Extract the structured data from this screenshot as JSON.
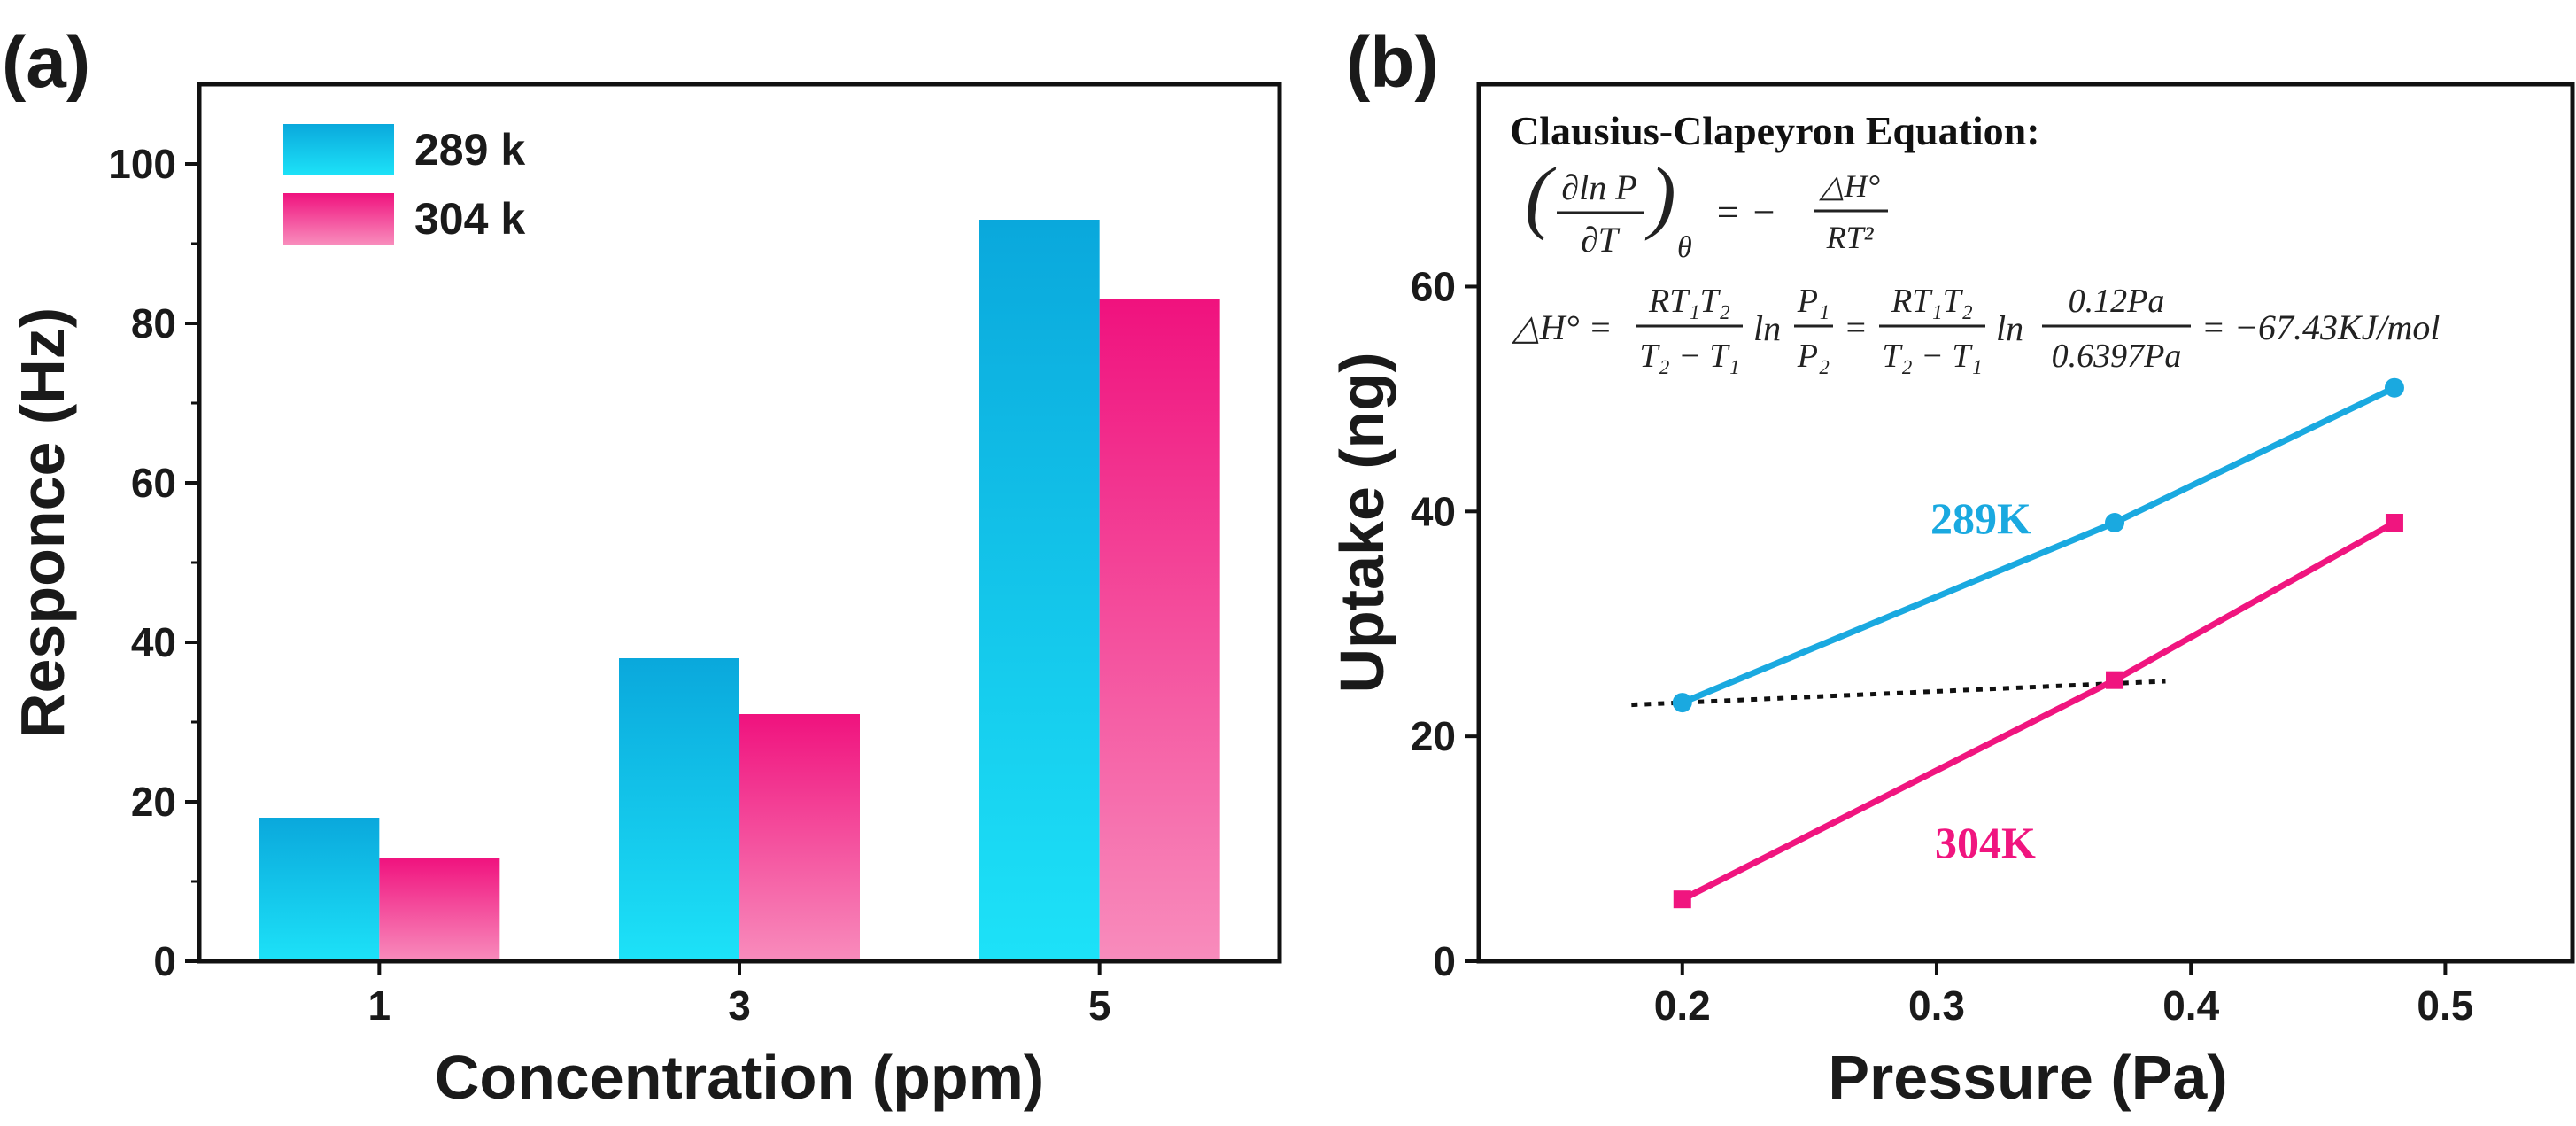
{
  "chart_data": [
    {
      "panel": "(a)",
      "type": "bar",
      "xlabel": "Concentration (ppm)",
      "ylabel": "Responce (Hz)",
      "categories": [
        "1",
        "3",
        "5"
      ],
      "ylim": [
        0,
        110
      ],
      "yticks": [
        "0",
        "20",
        "40",
        "60",
        "80",
        "100"
      ],
      "legend": "top-left",
      "series": [
        {
          "name": "289 k",
          "color_top": "#0aa8dc",
          "color_bottom": "#1de2f8",
          "values": [
            18,
            38,
            93
          ]
        },
        {
          "name": "304 k",
          "color_top": "#f0127e",
          "color_bottom": "#f88cbc",
          "values": [
            13,
            31,
            83
          ]
        }
      ]
    },
    {
      "panel": "(b)",
      "type": "scatter",
      "xlabel": "Pressure (Pa)",
      "ylabel": "Uptake (ng)",
      "xlim": [
        0.12,
        0.55
      ],
      "ylim": [
        0,
        78
      ],
      "xticks": [
        "0.2",
        "0.3",
        "0.4",
        "0.5"
      ],
      "yticks": [
        "0",
        "20",
        "40",
        "60"
      ],
      "series": [
        {
          "name": "289K",
          "color": "#1aa9e0",
          "marker": "circle",
          "x": [
            0.2,
            0.37,
            0.48
          ],
          "y": [
            23,
            39,
            51
          ]
        },
        {
          "name": "304K",
          "color": "#f0157f",
          "marker": "square",
          "x": [
            0.2,
            0.37,
            0.48
          ],
          "y": [
            5.5,
            25,
            39
          ]
        }
      ],
      "reference_line": {
        "style": "dotted",
        "x": [
          0.18,
          0.39
        ],
        "y": [
          22.8,
          24.9
        ]
      },
      "annotation": {
        "title": "Clausius-Clapeyron Equation:",
        "eq1_lhs": "∂ln P",
        "eq1_den": "∂T",
        "eq1_sub": "θ",
        "eq1_eq": "= −",
        "eq1_rhs_num": "△H°",
        "eq1_rhs_den": "RT²",
        "eq2_lhs": "△H° =",
        "frac1_num": "RT₁T₂",
        "frac1_den": "T₂ − T₁",
        "ln1": "ln",
        "frac2_num": "P₁",
        "frac2_den": "P₂",
        "eq_sign": "=",
        "frac3_num": "RT₁T₂",
        "frac3_den": "T₂ − T₁",
        "ln2": "ln",
        "frac4_num": "0.12Pa",
        "frac4_den": "0.6397Pa",
        "result": "= −67.43KJ/mol"
      }
    }
  ]
}
